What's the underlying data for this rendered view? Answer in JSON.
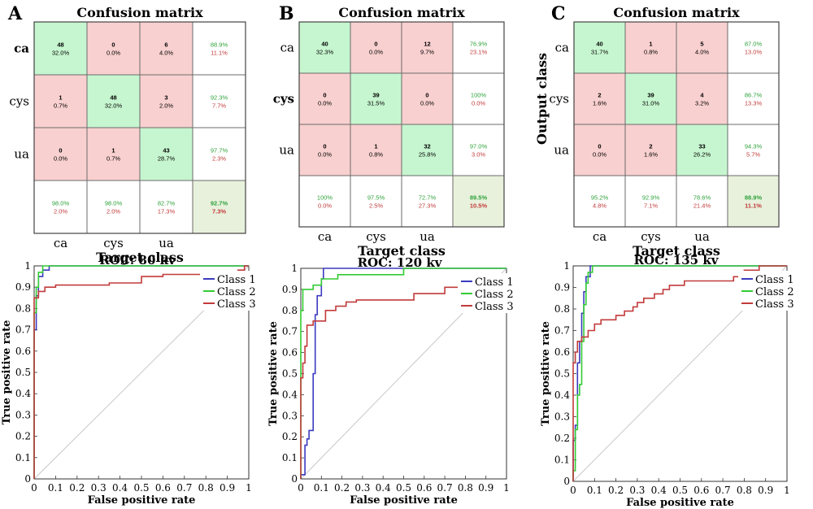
{
  "panels": [
    {
      "letter": "A",
      "cm_title": "Confusion matrix",
      "row_labels": [
        "ca",
        "cys",
        "ua"
      ],
      "col_labels": [
        "ca",
        "cys",
        "ua"
      ],
      "xlabel": "Target class",
      "ylabel": "",
      "cells": [
        [
          [
            "48",
            "32.0%"
          ],
          [
            "0",
            "0.0%"
          ],
          [
            "6",
            "4.0%"
          ]
        ],
        [
          [
            "1",
            "0.7%"
          ],
          [
            "48",
            "32.0%"
          ],
          [
            "3",
            "2.0%"
          ]
        ],
        [
          [
            "0",
            "0.0%"
          ],
          [
            "1",
            "0.7%"
          ],
          [
            "43",
            "28.7%"
          ]
        ]
      ],
      "row_summary": [
        [
          "88.9%",
          "11.1%"
        ],
        [
          "92.3%",
          "7.7%"
        ],
        [
          "97.7%",
          "2.3%"
        ]
      ],
      "col_summary": [
        [
          "98.0%",
          "2.0%"
        ],
        [
          "98.0%",
          "2.0%"
        ],
        [
          "82.7%",
          "17.3%"
        ]
      ],
      "total": [
        "92.7%",
        "7.3%"
      ]
    },
    {
      "letter": "B",
      "cm_title": "Confusion matrix",
      "row_labels": [
        "ca",
        "cys",
        "ua"
      ],
      "col_labels": [
        "ca",
        "cys",
        "ua"
      ],
      "xlabel": "Target class",
      "ylabel": "",
      "cells": [
        [
          [
            "40",
            "32.3%"
          ],
          [
            "0",
            "0.0%"
          ],
          [
            "12",
            "9.7%"
          ]
        ],
        [
          [
            "0",
            "0.0%"
          ],
          [
            "39",
            "31.5%"
          ],
          [
            "0",
            "0.0%"
          ]
        ],
        [
          [
            "0",
            "0.0%"
          ],
          [
            "1",
            "0.8%"
          ],
          [
            "32",
            "25.8%"
          ]
        ]
      ],
      "row_summary": [
        [
          "76.9%",
          "23.1%"
        ],
        [
          "100%",
          "0.0%"
        ],
        [
          "97.0%",
          "3.0%"
        ]
      ],
      "col_summary": [
        [
          "100%",
          "0.0%"
        ],
        [
          "97.5%",
          "2.5%"
        ],
        [
          "72.7%",
          "27.3%"
        ]
      ],
      "total": [
        "89.5%",
        "10.5%"
      ]
    },
    {
      "letter": "C",
      "cm_title": "Confusion matrix",
      "row_labels": [
        "ca",
        "cys",
        "ua"
      ],
      "col_labels": [
        "ca",
        "cys",
        "ua"
      ],
      "xlabel": "Target class",
      "ylabel": "Output class",
      "cells": [
        [
          [
            "40",
            "31.7%"
          ],
          [
            "1",
            "0.8%"
          ],
          [
            "5",
            "4.0%"
          ]
        ],
        [
          [
            "2",
            "1.6%"
          ],
          [
            "39",
            "31.0%"
          ],
          [
            "4",
            "3.2%"
          ]
        ],
        [
          [
            "0",
            "0.0%"
          ],
          [
            "2",
            "1.6%"
          ],
          [
            "33",
            "26.2%"
          ]
        ]
      ],
      "row_summary": [
        [
          "87.0%",
          "13.0%"
        ],
        [
          "86.7%",
          "13.3%"
        ],
        [
          "94.3%",
          "5.7%"
        ]
      ],
      "col_summary": [
        [
          "95.2%",
          "4.8%"
        ],
        [
          "92.9%",
          "7.1%"
        ],
        [
          "78.6%",
          "21.4%"
        ]
      ],
      "total": [
        "88.9%",
        "11.1%"
      ]
    }
  ],
  "chart_data": [
    {
      "type": "line",
      "title": "ROC: 80 kv",
      "xlabel": "False positive rate",
      "ylabel": "True positive rate",
      "xlim": [
        0,
        1
      ],
      "ylim": [
        0,
        1
      ],
      "x_ticks": [
        "0",
        "0.1",
        "0.2",
        "0.3",
        "0.4",
        "0.5",
        "0.6",
        "0.7",
        "0.8",
        "0.9",
        "1"
      ],
      "y_ticks": [
        "0",
        "0.1",
        "0.2",
        "0.3",
        "0.4",
        "0.5",
        "0.6",
        "0.7",
        "0.8",
        "0.9",
        "1"
      ],
      "legend_position": "top-right",
      "series": [
        {
          "name": "Class 1",
          "color": "#3b3bbf",
          "points": [
            [
              0,
              0
            ],
            [
              0,
              0.7
            ],
            [
              0.01,
              0.7
            ],
            [
              0.01,
              0.86
            ],
            [
              0.02,
              0.86
            ],
            [
              0.02,
              0.95
            ],
            [
              0.04,
              0.95
            ],
            [
              0.04,
              0.98
            ],
            [
              0.07,
              0.98
            ],
            [
              0.07,
              1
            ],
            [
              1,
              1
            ]
          ]
        },
        {
          "name": "Class 2",
          "color": "#33cc33",
          "points": [
            [
              0,
              0
            ],
            [
              0,
              0.78
            ],
            [
              0.01,
              0.78
            ],
            [
              0.01,
              0.9
            ],
            [
              0.02,
              0.9
            ],
            [
              0.02,
              0.97
            ],
            [
              0.04,
              0.97
            ],
            [
              0.04,
              1
            ],
            [
              1,
              1
            ]
          ]
        },
        {
          "name": "Class 3",
          "color": "#c23b3b",
          "points": [
            [
              0,
              0
            ],
            [
              0,
              0.85
            ],
            [
              0.02,
              0.85
            ],
            [
              0.02,
              0.88
            ],
            [
              0.05,
              0.88
            ],
            [
              0.05,
              0.9
            ],
            [
              0.1,
              0.9
            ],
            [
              0.1,
              0.91
            ],
            [
              0.35,
              0.91
            ],
            [
              0.35,
              0.92
            ],
            [
              0.5,
              0.92
            ],
            [
              0.5,
              0.95
            ],
            [
              0.6,
              0.95
            ],
            [
              0.6,
              0.96
            ],
            [
              0.95,
              0.96
            ],
            [
              0.95,
              0.98
            ],
            [
              0.98,
              0.98
            ],
            [
              0.98,
              1
            ],
            [
              1,
              1
            ]
          ]
        }
      ]
    },
    {
      "type": "line",
      "title": "ROC: 120 kv",
      "xlabel": "False positive rate",
      "ylabel": "True positive rate",
      "xlim": [
        0,
        1
      ],
      "ylim": [
        0,
        1
      ],
      "x_ticks": [
        "0",
        "0.1",
        "0.2",
        "0.3",
        "0.4",
        "0.5",
        "0.6",
        "0.7",
        "0.8",
        "0.9",
        "1"
      ],
      "y_ticks": [
        "0",
        "0.1",
        "0.2",
        "0.3",
        "0.4",
        "0.5",
        "0.6",
        "0.7",
        "0.8",
        "0.9",
        "1"
      ],
      "legend_position": "top-right",
      "series": [
        {
          "name": "Class 1",
          "color": "#3b3bbf",
          "points": [
            [
              0,
              0
            ],
            [
              0,
              0.02
            ],
            [
              0.02,
              0.02
            ],
            [
              0.02,
              0.16
            ],
            [
              0.03,
              0.16
            ],
            [
              0.03,
              0.19
            ],
            [
              0.04,
              0.19
            ],
            [
              0.04,
              0.23
            ],
            [
              0.06,
              0.23
            ],
            [
              0.06,
              0.5
            ],
            [
              0.07,
              0.5
            ],
            [
              0.07,
              0.78
            ],
            [
              0.08,
              0.78
            ],
            [
              0.08,
              0.87
            ],
            [
              0.1,
              0.87
            ],
            [
              0.1,
              0.95
            ],
            [
              0.11,
              0.95
            ],
            [
              0.11,
              1
            ],
            [
              1,
              1
            ]
          ]
        },
        {
          "name": "Class 2",
          "color": "#33cc33",
          "points": [
            [
              0,
              0
            ],
            [
              0,
              0.8
            ],
            [
              0.01,
              0.8
            ],
            [
              0.01,
              0.9
            ],
            [
              0.06,
              0.9
            ],
            [
              0.06,
              0.92
            ],
            [
              0.1,
              0.92
            ],
            [
              0.1,
              0.95
            ],
            [
              0.18,
              0.95
            ],
            [
              0.18,
              0.97
            ],
            [
              0.5,
              0.97
            ],
            [
              0.5,
              1
            ],
            [
              1,
              1
            ]
          ]
        },
        {
          "name": "Class 3",
          "color": "#c23b3b",
          "points": [
            [
              0,
              0
            ],
            [
              0,
              0.48
            ],
            [
              0.01,
              0.48
            ],
            [
              0.01,
              0.55
            ],
            [
              0.02,
              0.55
            ],
            [
              0.02,
              0.63
            ],
            [
              0.03,
              0.63
            ],
            [
              0.03,
              0.73
            ],
            [
              0.06,
              0.73
            ],
            [
              0.06,
              0.75
            ],
            [
              0.12,
              0.75
            ],
            [
              0.12,
              0.8
            ],
            [
              0.17,
              0.8
            ],
            [
              0.17,
              0.82
            ],
            [
              0.22,
              0.82
            ],
            [
              0.22,
              0.84
            ],
            [
              0.27,
              0.84
            ],
            [
              0.27,
              0.85
            ],
            [
              0.55,
              0.85
            ],
            [
              0.55,
              0.88
            ],
            [
              0.7,
              0.88
            ],
            [
              0.7,
              0.91
            ],
            [
              1,
              0.91
            ]
          ]
        }
      ]
    },
    {
      "type": "line",
      "title": "ROC: 135 kv",
      "xlabel": "False positive rate",
      "ylabel": "True positive rate",
      "xlim": [
        0,
        1
      ],
      "ylim": [
        0,
        1
      ],
      "x_ticks": [
        "0",
        "0.1",
        "0.2",
        "0.3",
        "0.4",
        "0.5",
        "0.6",
        "0.7",
        "0.8",
        "0.9",
        "1"
      ],
      "y_ticks": [
        "0",
        "0.1",
        "0.2",
        "0.3",
        "0.4",
        "0.5",
        "0.6",
        "0.7",
        "0.8",
        "0.9",
        "1"
      ],
      "legend_position": "top-right",
      "series": [
        {
          "name": "Class 1",
          "color": "#3b3bbf",
          "points": [
            [
              0,
              0
            ],
            [
              0,
              0.19
            ],
            [
              0.01,
              0.19
            ],
            [
              0.01,
              0.26
            ],
            [
              0.02,
              0.26
            ],
            [
              0.02,
              0.55
            ],
            [
              0.03,
              0.55
            ],
            [
              0.03,
              0.65
            ],
            [
              0.04,
              0.65
            ],
            [
              0.04,
              0.78
            ],
            [
              0.05,
              0.78
            ],
            [
              0.05,
              0.88
            ],
            [
              0.06,
              0.88
            ],
            [
              0.06,
              0.95
            ],
            [
              0.08,
              0.95
            ],
            [
              0.08,
              1
            ],
            [
              1,
              1
            ]
          ]
        },
        {
          "name": "Class 2",
          "color": "#33cc33",
          "points": [
            [
              0,
              0
            ],
            [
              0,
              0.05
            ],
            [
              0.01,
              0.05
            ],
            [
              0.01,
              0.24
            ],
            [
              0.02,
              0.24
            ],
            [
              0.02,
              0.4
            ],
            [
              0.03,
              0.4
            ],
            [
              0.03,
              0.45
            ],
            [
              0.04,
              0.45
            ],
            [
              0.04,
              0.65
            ],
            [
              0.05,
              0.65
            ],
            [
              0.05,
              0.82
            ],
            [
              0.06,
              0.82
            ],
            [
              0.06,
              0.92
            ],
            [
              0.07,
              0.92
            ],
            [
              0.07,
              0.97
            ],
            [
              0.09,
              0.97
            ],
            [
              0.09,
              1
            ],
            [
              1,
              1
            ]
          ]
        },
        {
          "name": "Class 3",
          "color": "#c23b3b",
          "points": [
            [
              0,
              0
            ],
            [
              0,
              0.55
            ],
            [
              0.01,
              0.55
            ],
            [
              0.01,
              0.6
            ],
            [
              0.02,
              0.6
            ],
            [
              0.02,
              0.65
            ],
            [
              0.04,
              0.65
            ],
            [
              0.04,
              0.67
            ],
            [
              0.07,
              0.67
            ],
            [
              0.07,
              0.7
            ],
            [
              0.1,
              0.7
            ],
            [
              0.1,
              0.73
            ],
            [
              0.13,
              0.73
            ],
            [
              0.13,
              0.75
            ],
            [
              0.2,
              0.75
            ],
            [
              0.2,
              0.77
            ],
            [
              0.24,
              0.77
            ],
            [
              0.24,
              0.79
            ],
            [
              0.28,
              0.79
            ],
            [
              0.28,
              0.81
            ],
            [
              0.3,
              0.81
            ],
            [
              0.3,
              0.83
            ],
            [
              0.33,
              0.83
            ],
            [
              0.33,
              0.85
            ],
            [
              0.38,
              0.85
            ],
            [
              0.38,
              0.87
            ],
            [
              0.42,
              0.87
            ],
            [
              0.42,
              0.89
            ],
            [
              0.45,
              0.89
            ],
            [
              0.45,
              0.91
            ],
            [
              0.52,
              0.91
            ],
            [
              0.52,
              0.93
            ],
            [
              0.75,
              0.93
            ],
            [
              0.75,
              0.95
            ],
            [
              0.8,
              0.95
            ],
            [
              0.8,
              0.98
            ],
            [
              0.87,
              0.98
            ],
            [
              0.87,
              1
            ],
            [
              1,
              1
            ]
          ]
        }
      ]
    }
  ],
  "colors": {
    "correct": "#c6f6cf",
    "incorrect": "#f8d0cf",
    "summary_bg": "#ffffff",
    "total_bg": "#e8f1dc",
    "green_text": "#2ea23a",
    "red_text": "#c23b3b"
  }
}
